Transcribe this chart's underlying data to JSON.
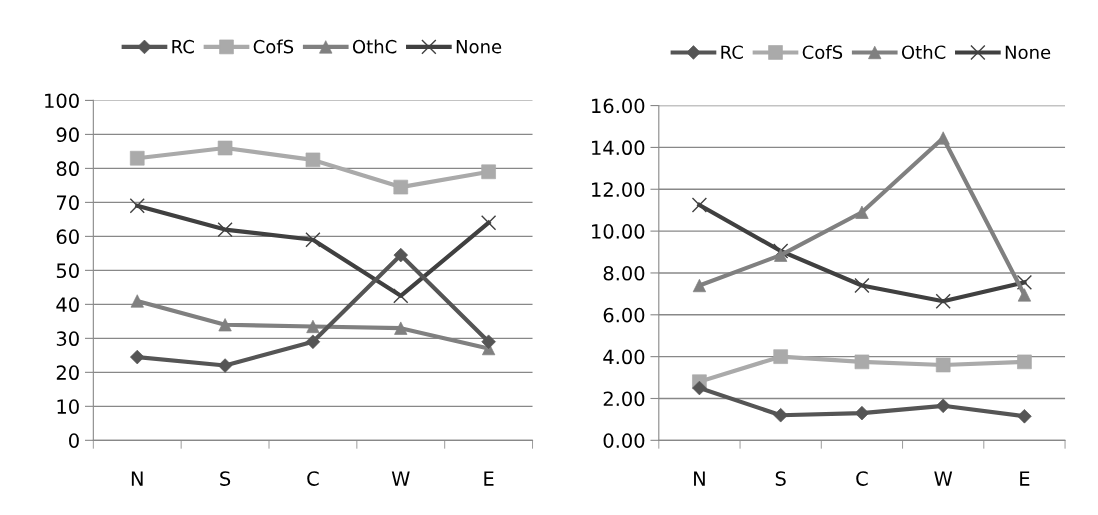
{
  "chart_data": [
    {
      "type": "line",
      "categories": [
        "N",
        "S",
        "C",
        "W",
        "E"
      ],
      "series": [
        {
          "name": "RC",
          "color": "#555555",
          "marker": "diamond",
          "values": [
            24.5,
            22,
            29,
            54.5,
            29
          ]
        },
        {
          "name": "CofS",
          "color": "#aaaaaa",
          "marker": "square",
          "values": [
            83,
            86,
            82.5,
            74.5,
            79
          ]
        },
        {
          "name": "OthC",
          "color": "#808080",
          "marker": "triangle",
          "values": [
            41,
            34,
            33.5,
            33,
            27
          ]
        },
        {
          "name": "None",
          "color": "#404040",
          "marker": "cross",
          "values": [
            69,
            62,
            59,
            42.5,
            64
          ]
        }
      ],
      "ylim": [
        0,
        100
      ],
      "yticks": [
        0,
        10,
        20,
        30,
        40,
        50,
        60,
        70,
        80,
        90,
        100
      ],
      "grid": "y",
      "legend": "top"
    },
    {
      "type": "line",
      "categories": [
        "N",
        "S",
        "C",
        "W",
        "E"
      ],
      "series": [
        {
          "name": "RC",
          "color": "#555555",
          "marker": "diamond",
          "values": [
            2.5,
            1.2,
            1.3,
            1.65,
            1.15
          ]
        },
        {
          "name": "CofS",
          "color": "#aaaaaa",
          "marker": "square",
          "values": [
            2.8,
            4.0,
            3.75,
            3.6,
            3.75
          ]
        },
        {
          "name": "OthC",
          "color": "#808080",
          "marker": "triangle",
          "values": [
            7.4,
            8.85,
            10.9,
            14.45,
            6.95
          ]
        },
        {
          "name": "None",
          "color": "#404040",
          "marker": "cross",
          "values": [
            11.25,
            9.05,
            7.4,
            6.65,
            7.55
          ]
        }
      ],
      "ylim": [
        0,
        16
      ],
      "yticks": [
        {
          "value": 0,
          "label": "0.00"
        },
        {
          "value": 2,
          "label": "2.00"
        },
        {
          "value": 4,
          "label": "4.00"
        },
        {
          "value": 6,
          "label": "6.00"
        },
        {
          "value": 8,
          "label": "8.00"
        },
        {
          "value": 10,
          "label": "10.00"
        },
        {
          "value": 12,
          "label": "12.00"
        },
        {
          "value": 14,
          "label": "14.00"
        },
        {
          "value": 16,
          "label": "16.00"
        }
      ],
      "grid": "y",
      "legend": "top"
    }
  ]
}
